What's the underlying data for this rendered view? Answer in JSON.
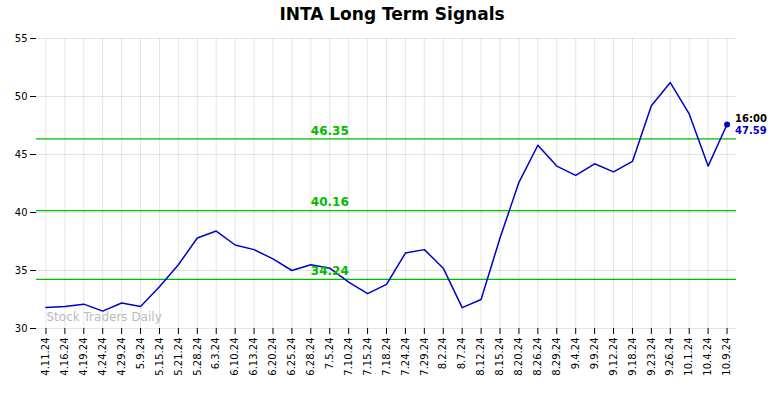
{
  "chart_data": {
    "type": "line",
    "title": "INTA Long Term Signals",
    "categories": [
      "4.11.24",
      "4.16.24",
      "4.19.24",
      "4.24.24",
      "4.29.24",
      "5.9.24",
      "5.15.24",
      "5.21.24",
      "5.28.24",
      "6.3.24",
      "6.10.24",
      "6.13.24",
      "6.20.24",
      "6.25.24",
      "6.28.24",
      "7.5.24",
      "7.10.24",
      "7.15.24",
      "7.18.24",
      "7.24.24",
      "7.29.24",
      "8.2.24",
      "8.7.24",
      "8.12.24",
      "8.15.24",
      "8.20.24",
      "8.26.24",
      "8.29.24",
      "9.4.24",
      "9.9.24",
      "9.12.24",
      "9.18.24",
      "9.23.24",
      "9.26.24",
      "10.1.24",
      "10.4.24",
      "10.9.24"
    ],
    "values": [
      31.8,
      31.9,
      32.1,
      31.5,
      32.2,
      31.9,
      33.6,
      35.5,
      37.8,
      38.4,
      37.2,
      36.8,
      36.0,
      35.0,
      35.5,
      35.2,
      34.0,
      33.0,
      33.8,
      36.5,
      36.8,
      35.2,
      31.8,
      32.5,
      37.8,
      42.6,
      45.8,
      44.0,
      43.2,
      44.2,
      43.5,
      44.4,
      49.2,
      51.2,
      48.5,
      44.0,
      47.59
    ],
    "color": "#0000cc",
    "ylim": [
      30,
      55
    ],
    "yticks": [
      30,
      35,
      40,
      45,
      50,
      55
    ],
    "grid": true,
    "hlines": {
      "values": [
        34.24,
        40.16,
        46.35
      ],
      "labels": [
        "34.24",
        "40.16",
        "46.35"
      ],
      "color": "#00bb00"
    },
    "annotations": [
      {
        "text": "Stock Traders Daily",
        "color": "#bbbbbb"
      },
      {
        "text": "16:00",
        "color": "#000000"
      },
      {
        "text": "47.59",
        "color": "#0000cc"
      }
    ]
  }
}
